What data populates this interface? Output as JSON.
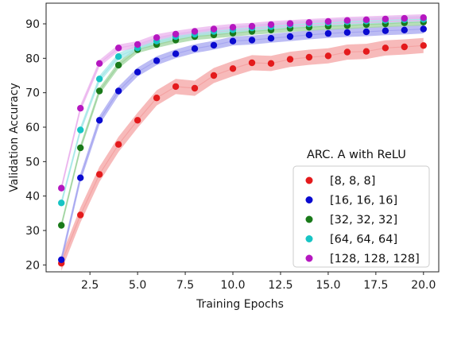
{
  "chart_data": {
    "type": "line",
    "xlabel": "Training Epochs",
    "ylabel": "Validation Accuracy",
    "xlim": [
      0.2,
      20.8
    ],
    "ylim": [
      18,
      96
    ],
    "xticks": [
      "2.5",
      "5.0",
      "7.5",
      "10.0",
      "12.5",
      "15.0",
      "17.5",
      "20.0"
    ],
    "yticks": [
      "20",
      "30",
      "40",
      "50",
      "60",
      "70",
      "80",
      "90"
    ],
    "grid": false,
    "legend_title": "ARC. A with ReLU",
    "legend_position": "lower-right",
    "x": [
      1,
      2,
      3,
      4,
      5,
      6,
      7,
      8,
      9,
      10,
      11,
      12,
      13,
      14,
      15,
      16,
      17,
      18,
      19,
      20
    ],
    "series": [
      {
        "name": "[8, 8, 8]",
        "color": "#e41a1c",
        "band_color": "#f4a3a3",
        "band": 2.2,
        "values": [
          20.5,
          34.5,
          46.3,
          55.0,
          62.0,
          68.5,
          71.8,
          71.3,
          75.0,
          77.0,
          78.7,
          78.5,
          79.7,
          80.3,
          80.7,
          81.8,
          82.0,
          83.0,
          83.3,
          83.7
        ]
      },
      {
        "name": "[16, 16, 16]",
        "color": "#0a0ad0",
        "band_color": "#a6a6f0",
        "band": 1.3,
        "values": [
          21.5,
          45.3,
          62.0,
          70.5,
          76.0,
          79.3,
          81.3,
          82.8,
          83.8,
          85.0,
          85.3,
          85.8,
          86.3,
          86.8,
          87.2,
          87.5,
          87.7,
          88.0,
          88.2,
          88.5
        ]
      },
      {
        "name": "[32, 32, 32]",
        "color": "#1a7a1a",
        "band_color": "#9fd49f",
        "band": 1.0,
        "values": [
          31.5,
          54.0,
          70.5,
          78.0,
          82.5,
          84.0,
          85.3,
          86.3,
          86.8,
          87.3,
          87.8,
          88.2,
          88.7,
          89.0,
          89.3,
          89.5,
          89.8,
          90.0,
          90.3,
          90.5
        ]
      },
      {
        "name": "[64, 64, 64]",
        "color": "#17c4c4",
        "band_color": "#a6e8e8",
        "band": 1.0,
        "values": [
          38.0,
          59.2,
          74.0,
          80.5,
          83.0,
          85.0,
          86.3,
          87.0,
          87.8,
          88.3,
          88.8,
          89.2,
          89.7,
          90.0,
          90.3,
          90.6,
          90.8,
          91.0,
          91.2,
          91.3
        ]
      },
      {
        "name": "[128, 128, 128]",
        "color": "#b517c0",
        "band_color": "#ebb3ee",
        "band": 1.0,
        "values": [
          42.3,
          65.5,
          78.5,
          83.0,
          84.0,
          86.0,
          87.0,
          87.8,
          88.5,
          89.0,
          89.3,
          89.8,
          90.1,
          90.4,
          90.7,
          91.0,
          91.2,
          91.4,
          91.6,
          91.8
        ]
      }
    ]
  }
}
